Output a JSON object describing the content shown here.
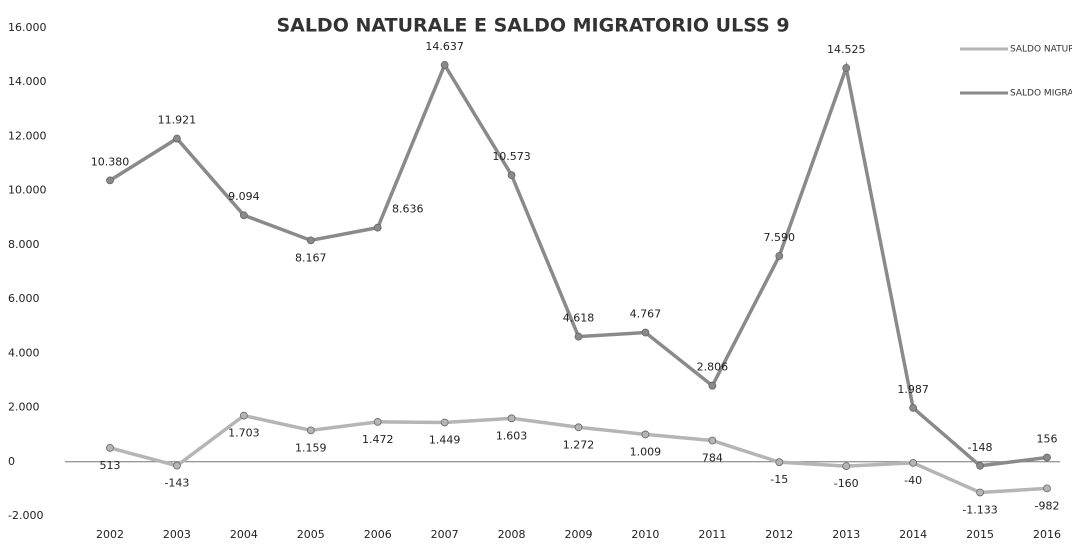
{
  "chart_data": {
    "type": "line",
    "title": "SALDO NATURALE E SALDO MIGRATORIO ULSS 9",
    "categories": [
      "2002",
      "2003",
      "2004",
      "2005",
      "2006",
      "2007",
      "2008",
      "2009",
      "2010",
      "2011",
      "2012",
      "2013",
      "2014",
      "2015",
      "2016"
    ],
    "series": [
      {
        "name": "SALDO NATURALE",
        "color": "#b5b5b5",
        "values": [
          513,
          -143,
          1703,
          1159,
          1472,
          1449,
          1603,
          1272,
          1009,
          784,
          -15,
          -160,
          -40,
          -1133,
          -982
        ],
        "value_labels": [
          "513",
          "-143",
          "1.703",
          "1.159",
          "1.472",
          "1.449",
          "1.603",
          "1.272",
          "1.009",
          "784",
          "-15",
          "-160",
          "-40",
          "-1.133",
          "-982"
        ]
      },
      {
        "name": "SALDO MIGRATORIO",
        "color": "#8a8a8a",
        "values": [
          10380,
          11921,
          9094,
          8167,
          8636,
          14637,
          10573,
          4618,
          4767,
          2806,
          7590,
          14525,
          1987,
          -148,
          156
        ],
        "value_labels": [
          "10.380",
          "11.921",
          "9.094",
          "8.167",
          "8.636",
          "14.637",
          "10.573",
          "4.618",
          "4.767",
          "2.806",
          "7.590",
          "14.525",
          "1.987",
          "-148",
          "156"
        ]
      }
    ],
    "ylim": [
      -2000,
      16000
    ],
    "yticks": [
      {
        "value": -2000,
        "label": "-2.000"
      },
      0,
      {
        "value": 2000,
        "label": "2.000"
      },
      {
        "value": 4000,
        "label": "4.000"
      },
      {
        "value": 6000,
        "label": "6.000"
      },
      {
        "value": 8000,
        "label": "8.000"
      },
      {
        "value": 10000,
        "label": "10.000"
      },
      {
        "value": 12000,
        "label": "12.000"
      },
      {
        "value": 14000,
        "label": "14.000"
      },
      {
        "value": 16000,
        "label": "16.000"
      }
    ],
    "grid": false,
    "legend": "top-right"
  }
}
